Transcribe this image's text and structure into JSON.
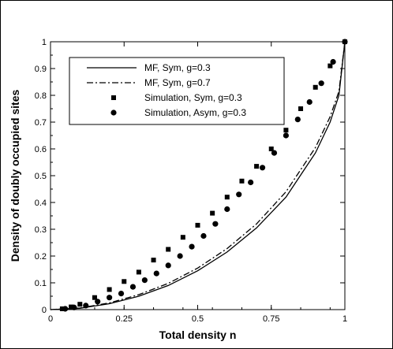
{
  "chart_data": {
    "type": "line",
    "title": "",
    "xlabel": "Total density n",
    "ylabel": "Density of doubly occupied sites",
    "xlim": [
      0,
      1
    ],
    "ylim": [
      0,
      1
    ],
    "xticks": [
      {
        "value": 0,
        "label": "0"
      },
      {
        "value": 0.25,
        "label": "0.25"
      },
      {
        "value": 0.5,
        "label": "0.5"
      },
      {
        "value": 0.75,
        "label": "0.75"
      },
      {
        "value": 1,
        "label": "1"
      }
    ],
    "yticks": [
      {
        "value": 0,
        "label": "0"
      },
      {
        "value": 0.1,
        "label": "0.1"
      },
      {
        "value": 0.2,
        "label": "0.2"
      },
      {
        "value": 0.3,
        "label": "0.3"
      },
      {
        "value": 0.4,
        "label": "0.4"
      },
      {
        "value": 0.5,
        "label": "0.5"
      },
      {
        "value": 0.6,
        "label": "0.6"
      },
      {
        "value": 0.7,
        "label": "0.7"
      },
      {
        "value": 0.8,
        "label": "0.8"
      },
      {
        "value": 0.9,
        "label": "0.9"
      },
      {
        "value": 1,
        "label": "1"
      }
    ],
    "grid": false,
    "legend_position": "top-left",
    "series": [
      {
        "name": "MF, Sym, g=0.3",
        "style": "solid-line",
        "color": "#000000",
        "x": [
          0,
          0.1,
          0.2,
          0.3,
          0.4,
          0.5,
          0.6,
          0.7,
          0.8,
          0.9,
          0.95,
          0.98,
          1.0
        ],
        "y": [
          0,
          0.005,
          0.022,
          0.05,
          0.09,
          0.145,
          0.215,
          0.305,
          0.42,
          0.585,
          0.7,
          0.8,
          1.0
        ]
      },
      {
        "name": "MF, Sym, g=0.7",
        "style": "dash-dot-line",
        "color": "#000000",
        "x": [
          0,
          0.1,
          0.2,
          0.3,
          0.4,
          0.5,
          0.6,
          0.7,
          0.8,
          0.9,
          0.95,
          0.98,
          1.0
        ],
        "y": [
          0,
          0.006,
          0.025,
          0.056,
          0.098,
          0.155,
          0.228,
          0.32,
          0.44,
          0.605,
          0.72,
          0.815,
          1.0
        ]
      },
      {
        "name": "Simulation,  Sym, g=0.3",
        "style": "square-markers",
        "color": "#000000",
        "x": [
          0.04,
          0.07,
          0.1,
          0.15,
          0.2,
          0.25,
          0.3,
          0.35,
          0.4,
          0.45,
          0.5,
          0.55,
          0.6,
          0.65,
          0.7,
          0.75,
          0.8,
          0.85,
          0.9,
          0.95,
          1.0
        ],
        "y": [
          0.003,
          0.01,
          0.02,
          0.045,
          0.075,
          0.105,
          0.14,
          0.185,
          0.225,
          0.27,
          0.315,
          0.36,
          0.42,
          0.48,
          0.535,
          0.6,
          0.67,
          0.75,
          0.83,
          0.91,
          1.0
        ]
      },
      {
        "name": "Simulation, Asym, g=0.3",
        "style": "circle-markers",
        "color": "#000000",
        "x": [
          0.05,
          0.08,
          0.12,
          0.16,
          0.2,
          0.24,
          0.28,
          0.32,
          0.36,
          0.4,
          0.44,
          0.48,
          0.52,
          0.56,
          0.6,
          0.64,
          0.68,
          0.72,
          0.76,
          0.8,
          0.84,
          0.88,
          0.92,
          0.96,
          1.0
        ],
        "y": [
          0.003,
          0.008,
          0.015,
          0.03,
          0.045,
          0.06,
          0.085,
          0.11,
          0.135,
          0.165,
          0.2,
          0.235,
          0.275,
          0.32,
          0.375,
          0.43,
          0.475,
          0.53,
          0.585,
          0.65,
          0.71,
          0.775,
          0.845,
          0.925,
          1.0
        ]
      }
    ]
  }
}
